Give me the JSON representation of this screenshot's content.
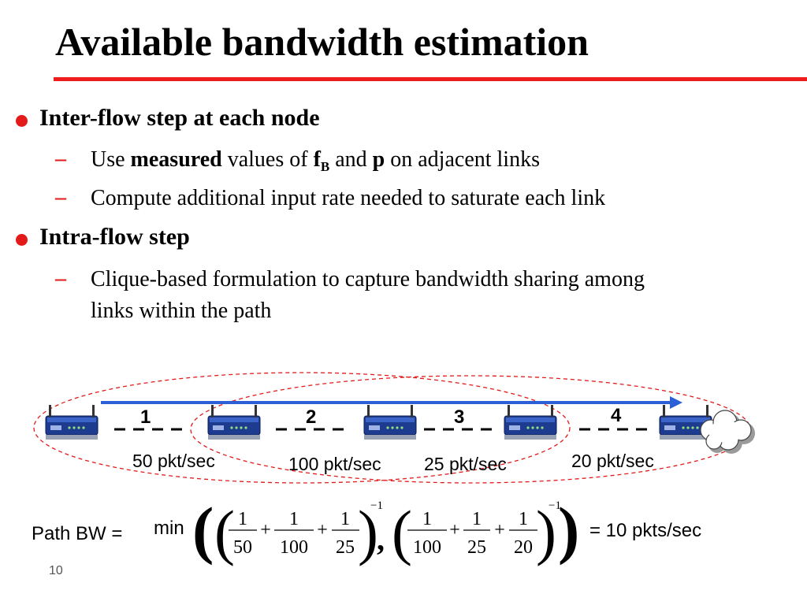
{
  "slide": {
    "title": "Available bandwidth estimation",
    "page_number": "10"
  },
  "bullets": [
    {
      "text": "Inter-flow step at each node",
      "subitems": [
        {
          "parts": [
            "Use ",
            "measured",
            " values of ",
            "f",
            "B",
            " and ",
            "p",
            " on adjacent links"
          ]
        },
        {
          "text": "Compute additional input rate needed to saturate each link"
        }
      ]
    },
    {
      "text": "Intra-flow step",
      "subitems": [
        {
          "line1": "Clique-based formulation to capture bandwidth sharing among",
          "line2": "links within the path"
        }
      ]
    }
  ],
  "diagram": {
    "hops": [
      "1",
      "2",
      "3",
      "4"
    ],
    "link_rates": [
      "50 pkt/sec",
      "100 pkt/sec",
      "25 pkt/sec",
      "20 pkt/sec"
    ],
    "icons": [
      "router-icon",
      "cloud-icon"
    ],
    "colors": {
      "flow_arrow": "#2a5fd6",
      "clique": "#e31a1a"
    }
  },
  "formula": {
    "label": "Path BW =",
    "min": "min",
    "group1": [
      {
        "num": "1",
        "den": "50"
      },
      {
        "num": "1",
        "den": "100"
      },
      {
        "num": "1",
        "den": "25"
      }
    ],
    "group2": [
      {
        "num": "1",
        "den": "100"
      },
      {
        "num": "1",
        "den": "25"
      },
      {
        "num": "1",
        "den": "20"
      }
    ],
    "plus": "+",
    "exponent": "−1",
    "comma": ",",
    "result": "= 10 pkts/sec"
  }
}
